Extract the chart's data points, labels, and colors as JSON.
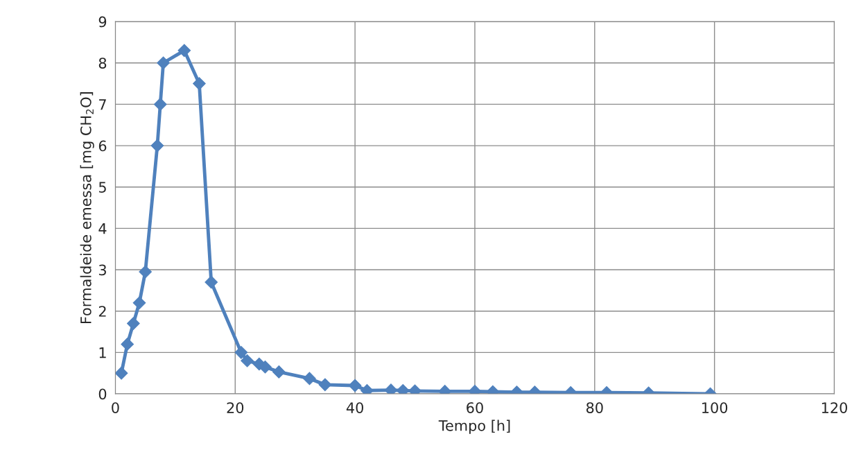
{
  "chart_data": {
    "type": "line",
    "xlabel": "Tempo [h]",
    "ylabel": "Formaldeide emessa [mg CH$_{2}$O]",
    "x": [
      1,
      2,
      3,
      4,
      5,
      7,
      7.5,
      8,
      11.5,
      14,
      16,
      21,
      22,
      24,
      25,
      27.3,
      32.4,
      35,
      40,
      42,
      46,
      48,
      50,
      55,
      60,
      63,
      67,
      70,
      76,
      82,
      89,
      99.3
    ],
    "series": [
      {
        "color": "#4f81bd",
        "values": [
          0.5,
          1.2,
          1.7,
          2.2,
          2.95,
          6,
          7,
          8,
          8.3,
          7.5,
          2.7,
          1.0,
          0.8,
          0.72,
          0.65,
          0.53,
          0.37,
          0.22,
          0.2,
          0.08,
          0.09,
          0.08,
          0.07,
          0.06,
          0.06,
          0.05,
          0.04,
          0.04,
          0.03,
          0.03,
          0.02,
          0.0
        ]
      }
    ],
    "xlim": [
      0,
      120
    ],
    "xticks": [
      0,
      20,
      40,
      60,
      80,
      100,
      120
    ],
    "ylim": [
      0,
      9
    ],
    "yticks": [
      0,
      1,
      2,
      3,
      4,
      5,
      6,
      7,
      8,
      9
    ],
    "grid": true,
    "marker": "diamond",
    "line_style": "solid"
  }
}
